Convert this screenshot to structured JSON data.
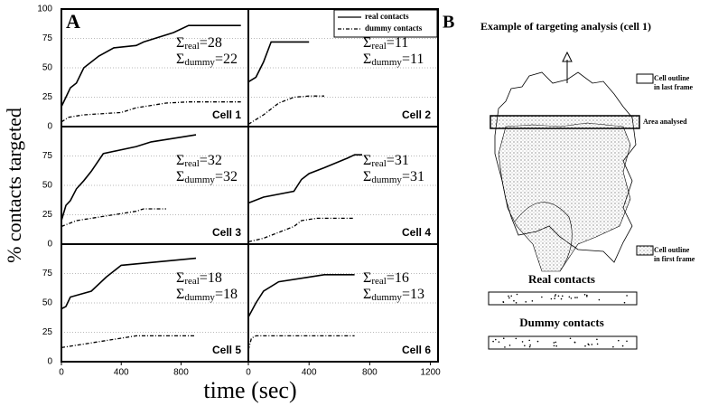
{
  "figure": {
    "panel_a": "A",
    "panel_b": "B",
    "ylabel": "% contacts targeted",
    "xlabel": "time (sec)"
  },
  "chart_data": [
    {
      "type": "line",
      "label": "Cell 1",
      "xlim": [
        0,
        1250
      ],
      "ylim": [
        0,
        100
      ],
      "yticks": [
        0,
        25,
        50,
        75,
        100
      ],
      "show_ytick_labels": true,
      "grid": true,
      "annotations": [
        {
          "symbol": "Σ",
          "sub": "real",
          "text": "=28"
        },
        {
          "symbol": "Σ",
          "sub": "dummy",
          "text": "=22"
        }
      ],
      "series": [
        {
          "name": "real contacts",
          "color": "#000000",
          "style": "solid",
          "x": [
            0,
            30,
            60,
            100,
            150,
            250,
            350,
            500,
            550,
            750,
            850,
            1000,
            1200
          ],
          "values": [
            17,
            25,
            33,
            37,
            50,
            60,
            67,
            69,
            72,
            80,
            86,
            86,
            86
          ]
        },
        {
          "name": "dummy contacts",
          "color": "#000000",
          "style": "dashdot",
          "x": [
            0,
            50,
            150,
            400,
            500,
            700,
            850,
            1200
          ],
          "values": [
            4,
            8,
            10,
            12,
            16,
            20,
            21,
            21
          ]
        }
      ]
    },
    {
      "type": "line",
      "label": "Cell 2",
      "xlim": [
        0,
        1250
      ],
      "ylim": [
        0,
        100
      ],
      "yticks": [
        0,
        25,
        50,
        75
      ],
      "show_ytick_labels": false,
      "grid": true,
      "legend": "upper right",
      "annotations": [
        {
          "symbol": "Σ",
          "sub": "real",
          "text": "=11"
        },
        {
          "symbol": "Σ",
          "sub": "dummy",
          "text": "=11"
        }
      ],
      "series": [
        {
          "name": "real contacts",
          "color": "#000000",
          "style": "solid",
          "x": [
            0,
            50,
            100,
            150,
            400
          ],
          "values": [
            38,
            42,
            55,
            72,
            72
          ]
        },
        {
          "name": "dummy contacts",
          "color": "#000000",
          "style": "dashdot",
          "x": [
            0,
            100,
            200,
            300,
            400,
            500
          ],
          "values": [
            2,
            10,
            20,
            25,
            26,
            26
          ]
        }
      ]
    },
    {
      "type": "line",
      "label": "Cell 3",
      "xlim": [
        0,
        1250
      ],
      "ylim": [
        0,
        100
      ],
      "yticks": [
        0,
        25,
        50,
        75
      ],
      "show_ytick_labels": true,
      "grid": true,
      "annotations": [
        {
          "symbol": "Σ",
          "sub": "real",
          "text": "=32"
        },
        {
          "symbol": "Σ",
          "sub": "dummy",
          "text": "=32"
        }
      ],
      "series": [
        {
          "name": "real contacts",
          "color": "#000000",
          "style": "solid",
          "x": [
            0,
            30,
            60,
            100,
            150,
            200,
            280,
            500,
            600,
            800,
            900
          ],
          "values": [
            20,
            33,
            37,
            47,
            54,
            62,
            77,
            83,
            87,
            91,
            93
          ]
        },
        {
          "name": "dummy contacts",
          "color": "#000000",
          "style": "dashdot",
          "x": [
            0,
            100,
            300,
            500,
            550,
            700
          ],
          "values": [
            15,
            20,
            24,
            28,
            30,
            30
          ]
        }
      ]
    },
    {
      "type": "line",
      "label": "Cell 4",
      "xlim": [
        0,
        1250
      ],
      "ylim": [
        0,
        100
      ],
      "yticks": [
        0,
        25,
        50,
        75
      ],
      "show_ytick_labels": false,
      "grid": true,
      "annotations": [
        {
          "symbol": "Σ",
          "sub": "real",
          "text": "=31"
        },
        {
          "symbol": "Σ",
          "sub": "dummy",
          "text": "=31"
        }
      ],
      "series": [
        {
          "name": "real contacts",
          "color": "#000000",
          "style": "solid",
          "x": [
            0,
            100,
            300,
            350,
            400,
            500,
            650,
            700,
            750
          ],
          "values": [
            35,
            40,
            45,
            55,
            60,
            65,
            73,
            76,
            76
          ]
        },
        {
          "name": "dummy contacts",
          "color": "#000000",
          "style": "dashdot",
          "x": [
            0,
            100,
            200,
            300,
            350,
            450,
            500,
            700
          ],
          "values": [
            2,
            5,
            10,
            15,
            20,
            22,
            22,
            22
          ]
        }
      ]
    },
    {
      "type": "line",
      "label": "Cell 5",
      "xlim": [
        0,
        1250
      ],
      "ylim": [
        0,
        100
      ],
      "yticks": [
        0,
        25,
        50,
        75
      ],
      "xticks": [
        0,
        400,
        800
      ],
      "show_ytick_labels": true,
      "grid": true,
      "annotations": [
        {
          "symbol": "Σ",
          "sub": "real",
          "text": "=18"
        },
        {
          "symbol": "Σ",
          "sub": "dummy",
          "text": "=18"
        }
      ],
      "series": [
        {
          "name": "real contacts",
          "color": "#000000",
          "style": "solid",
          "x": [
            0,
            30,
            60,
            200,
            300,
            400,
            900
          ],
          "values": [
            45,
            47,
            55,
            60,
            72,
            82,
            88
          ]
        },
        {
          "name": "dummy contacts",
          "color": "#000000",
          "style": "dashdot",
          "x": [
            0,
            300,
            500,
            800,
            900
          ],
          "values": [
            12,
            18,
            22,
            22,
            22
          ]
        }
      ]
    },
    {
      "type": "line",
      "label": "Cell 6",
      "xlim": [
        0,
        1250
      ],
      "ylim": [
        0,
        100
      ],
      "yticks": [
        0,
        25,
        50,
        75
      ],
      "xticks": [
        0,
        400,
        800,
        1200
      ],
      "show_ytick_labels": false,
      "grid": true,
      "annotations": [
        {
          "symbol": "Σ",
          "sub": "real",
          "text": "=16"
        },
        {
          "symbol": "Σ",
          "sub": "dummy",
          "text": "=13"
        }
      ],
      "series": [
        {
          "name": "real contacts",
          "color": "#000000",
          "style": "solid",
          "x": [
            0,
            50,
            100,
            200,
            400,
            500,
            700
          ],
          "values": [
            38,
            50,
            60,
            68,
            72,
            74,
            74
          ]
        },
        {
          "name": "dummy contacts",
          "color": "#000000",
          "style": "dashdot",
          "x": [
            0,
            20,
            50,
            700
          ],
          "values": [
            10,
            20,
            22,
            22
          ]
        }
      ]
    }
  ],
  "panel_b_content": {
    "title": "Example of targeting analysis (cell 1)",
    "last_frame": [
      "Cell outline",
      "in last frame"
    ],
    "area": "Area analysed",
    "first_frame": [
      "Cell outline",
      "in first frame"
    ],
    "real": "Real contacts",
    "dummy": "Dummy contacts"
  }
}
